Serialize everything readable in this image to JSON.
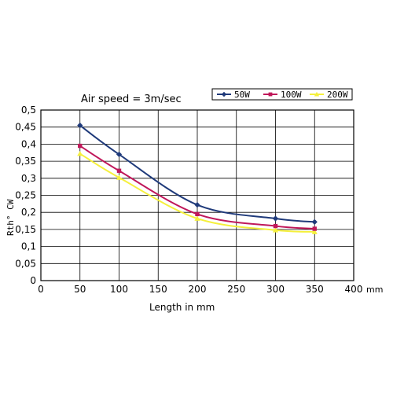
{
  "chart_data": {
    "type": "line",
    "title": "Air speed = 3m/sec",
    "xlabel": "Length in mm",
    "ylabel": "Rth° CW",
    "x_unit": "mm",
    "x_ticks": [
      "0",
      "50",
      "100",
      "150",
      "200",
      "250",
      "300",
      "350",
      "400"
    ],
    "y_ticks": [
      "0",
      "0,05",
      "0,1",
      "0,15",
      "0,2",
      "0,25",
      "0,3",
      "0,35",
      "0,4",
      "0,45",
      "0,5"
    ],
    "xlim": [
      0,
      400
    ],
    "ylim": [
      0,
      0.5
    ],
    "grid": true,
    "legend_position": "top-right",
    "x": [
      50,
      100,
      200,
      300,
      350
    ],
    "series": [
      {
        "name": "50W",
        "color": "#1f3a7a",
        "marker": "diamond",
        "values": [
          0.455,
          0.37,
          0.222,
          0.182,
          0.172
        ]
      },
      {
        "name": "100W",
        "color": "#c0185a",
        "marker": "square",
        "values": [
          0.395,
          0.322,
          0.195,
          0.16,
          0.152
        ]
      },
      {
        "name": "200W",
        "color": "#f5f03c",
        "marker": "triangle",
        "values": [
          0.372,
          0.302,
          0.182,
          0.148,
          0.143
        ]
      }
    ]
  }
}
